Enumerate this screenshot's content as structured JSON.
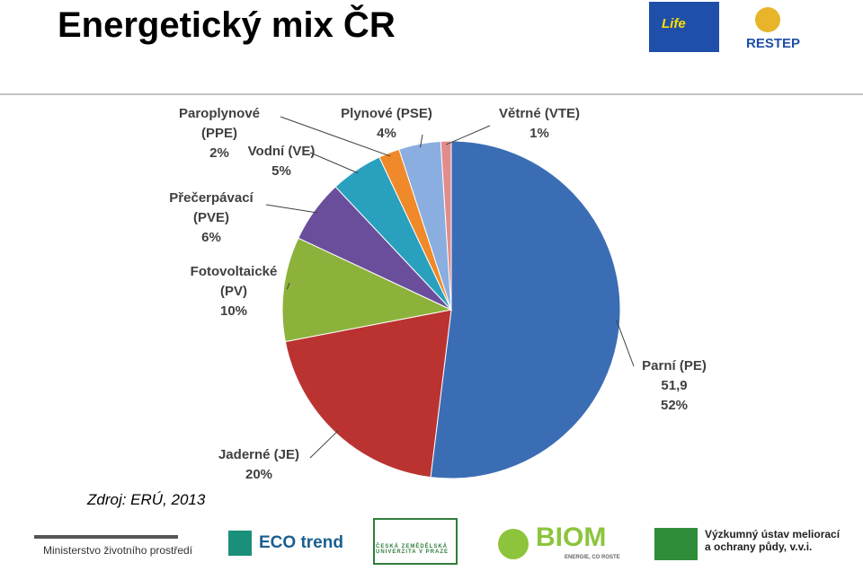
{
  "header": {
    "title": "Energetický mix ČR"
  },
  "chart_data": {
    "type": "pie",
    "categories": [
      "Parní (PE)",
      "Jaderné (JE)",
      "Fotovoltaické (PV)",
      "Přečerpávací (PVE)",
      "Vodní (VE)",
      "Paroplynové (PPE)",
      "Plynové (PSE)",
      "Větrné (VTE)"
    ],
    "values": [
      51.9,
      20,
      10,
      6,
      5,
      2,
      4,
      1
    ],
    "value_labels": [
      [
        "51,9",
        "52%"
      ],
      [
        "20%"
      ],
      [
        "10%"
      ],
      [
        "6%"
      ],
      [
        "5%"
      ],
      [
        "2%"
      ],
      [
        "4%"
      ],
      [
        "1%"
      ]
    ],
    "colors": [
      "#3b6db4",
      "#bb3330",
      "#8cb23b",
      "#6a4e9b",
      "#2aa0bf",
      "#f0892a",
      "#8aaee0",
      "#e28c8c"
    ]
  },
  "source": "Zdroj: ERÚ, 2013",
  "logos": {
    "life": "Life",
    "restep": "RESTEP",
    "mzp": "Ministerstvo životního prostředí",
    "ecotrend": "ECO trend",
    "czu": "ČESKÁ ZEMĚDĚLSKÁ UNIVERZITA V PRAZE",
    "biom": "BIOM",
    "biom_sub": "ENERGIE, CO ROSTE",
    "vumop": "Výzkumný ústav meliorací a ochrany půdy, v.v.i."
  }
}
